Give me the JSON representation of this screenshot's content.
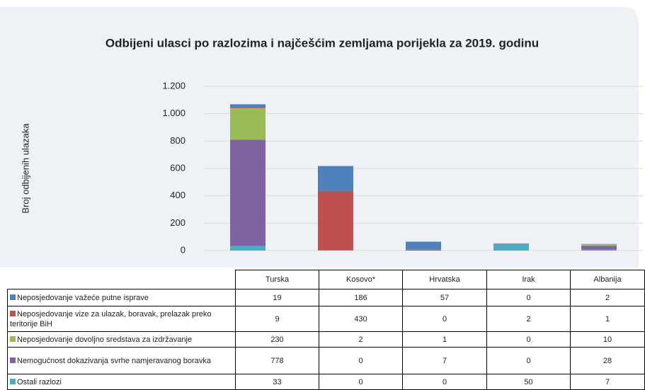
{
  "chart_data": {
    "type": "bar",
    "stacked": true,
    "title": "Odbijeni ulasci po razlozima i najčešćim zemljama porijekla za 2019. godinu",
    "y_label": "Broj odbijenih ulazaka",
    "categories": [
      "Turska",
      "Kosovo*",
      "Hrvatska",
      "Irak",
      "Albanija"
    ],
    "series": [
      {
        "name": "Neposjedovanje važeće putne isprave",
        "color": "#4f81bd",
        "values": [
          19,
          186,
          57,
          0,
          2
        ]
      },
      {
        "name": "Neposjedovanje vize za ulazak, boravak, prelazak preko teritorije BiH",
        "color": "#c0504d",
        "values": [
          9,
          430,
          0,
          2,
          1
        ]
      },
      {
        "name": "Neposjedovanje dovoljno sredstava za izdržavanje",
        "color": "#9bbb59",
        "values": [
          230,
          2,
          1,
          0,
          10
        ]
      },
      {
        "name": "Nemogućnost dokazivanja svrhe namjeravanog boravka",
        "color": "#8064a2",
        "values": [
          778,
          0,
          7,
          0,
          28
        ]
      },
      {
        "name": "Ostali razlozi",
        "color": "#4bacc6",
        "values": [
          33,
          0,
          0,
          50,
          7
        ]
      }
    ],
    "ylim": [
      0,
      1200
    ],
    "yticks": [
      0,
      200,
      400,
      600,
      800,
      {
        "value": 1000,
        "label": "1.000"
      },
      {
        "value": 1200,
        "label": "1.200"
      }
    ],
    "grid": true
  }
}
